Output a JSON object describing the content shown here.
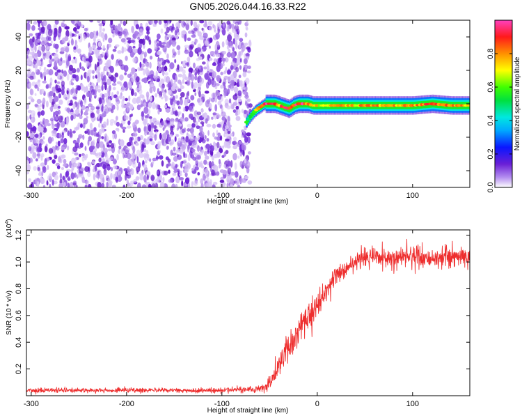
{
  "title": "GN05.2026.044.16.33.R22",
  "colors": {
    "snr_line": "#ee2e2e",
    "scatter": "#8a3fe0",
    "scatter_light": "#c9a8f2",
    "frame": "#000000"
  },
  "chart_data": [
    {
      "type": "heatmap",
      "xlabel": "Height of straight line (km)",
      "ylabel": "Frequency (Hz)",
      "xlim": [
        -305,
        160
      ],
      "ylim": [
        -50,
        50
      ],
      "x_ticks": [
        -300,
        -200,
        -100,
        0,
        100
      ],
      "x_tick_labels": [
        "-300",
        "-200",
        "-100",
        "0",
        "100"
      ],
      "y_ticks": [
        -40,
        -20,
        0,
        20,
        40
      ],
      "y_tick_labels": [
        "-40",
        "-20",
        "0",
        "20",
        "40"
      ],
      "noise_region": {
        "x_range": [
          -305,
          -70
        ],
        "y_range": [
          -50,
          50
        ],
        "amplitude_range": [
          0.0,
          0.25
        ]
      },
      "ridge": {
        "x": [
          -75,
          -70,
          -65,
          -60,
          -55,
          -50,
          -45,
          -40,
          -35,
          -30,
          -25,
          -20,
          -15,
          -10,
          -5,
          0,
          10,
          20,
          40,
          60,
          80,
          100,
          120,
          140,
          160
        ],
        "y": [
          -11,
          -7,
          -4,
          -2,
          0,
          0,
          0,
          -1,
          -2,
          -3,
          -1,
          0,
          0,
          0,
          -1,
          -1,
          -1,
          -1,
          -1,
          -1,
          -1,
          -1,
          0,
          -1,
          -1
        ],
        "amplitude": [
          0.5,
          0.6,
          0.7,
          0.8,
          0.95,
          0.95,
          0.9,
          0.8,
          0.9,
          0.9,
          0.85,
          0.95,
          0.95,
          0.8,
          0.7,
          0.7,
          0.75,
          0.75,
          0.75,
          0.8,
          0.75,
          0.8,
          0.85,
          0.8,
          0.75
        ]
      },
      "colorbar": {
        "label": "Normalized spectral amplitude",
        "range": [
          0,
          1
        ],
        "ticks": [
          0.0,
          0.2,
          0.4,
          0.6,
          0.8
        ],
        "tick_labels": [
          "0.0",
          "0.2",
          "0.4",
          "0.6",
          "0.8"
        ]
      }
    },
    {
      "type": "line",
      "xlabel": "Height of straight line (km)",
      "ylabel": "SNR (10 * v/v)",
      "y_scale_label": "(x10",
      "y_scale_exponent": "4",
      "y_scale_close": ")",
      "xlim": [
        -305,
        160
      ],
      "ylim": [
        0,
        1.24
      ],
      "x_ticks": [
        -300,
        -200,
        -100,
        0,
        100
      ],
      "x_tick_labels": [
        "-300",
        "-200",
        "-100",
        "0",
        "100"
      ],
      "y_ticks": [
        0.2,
        0.4,
        0.6,
        0.8,
        1.0,
        1.2
      ],
      "y_tick_labels": [
        "0.2",
        "0.4",
        "0.6",
        "0.8",
        "1.0",
        "1.2"
      ],
      "series": [
        {
          "x": [
            -305,
            -200,
            -100,
            -60,
            -50,
            -45,
            -40,
            -30,
            -20,
            -10,
            0,
            10,
            20,
            30,
            40,
            60,
            80,
            100,
            120,
            140,
            160
          ],
          "y": [
            0.04,
            0.04,
            0.04,
            0.05,
            0.08,
            0.15,
            0.24,
            0.37,
            0.48,
            0.58,
            0.69,
            0.79,
            0.9,
            0.96,
            1.01,
            1.04,
            1.03,
            1.05,
            1.03,
            1.04,
            1.04
          ],
          "noise": [
            0.015,
            0.015,
            0.015,
            0.02,
            0.05,
            0.06,
            0.08,
            0.1,
            0.1,
            0.1,
            0.1,
            0.08,
            0.07,
            0.06,
            0.06,
            0.07,
            0.07,
            0.07,
            0.07,
            0.07,
            0.07
          ]
        }
      ]
    }
  ]
}
